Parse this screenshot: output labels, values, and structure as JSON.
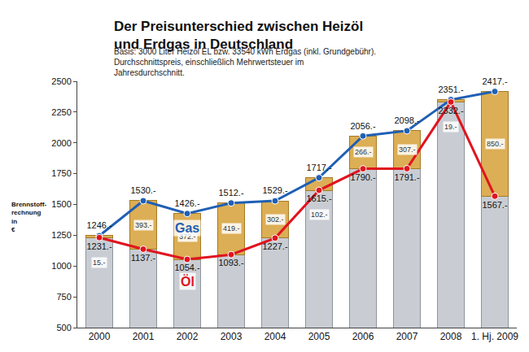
{
  "chart_data": {
    "type": "line",
    "title": "Der Preisunterschied zwischen Heizöl und Erdgas in Deutschland",
    "subtitle": "Basis: 3000 Liter Heizöl EL bzw. 33540 kWh Erdgas (inkl. Grundgebühr). Durchschnittspreis, einschließlich Mehrwertsteuer im Jahresdurchschnitt.",
    "y_label": "Brennstoff-rechnung in €",
    "categories": [
      "2000",
      "2001",
      "2002",
      "2003",
      "2004",
      "2005",
      "2006",
      "2007",
      "2008",
      "1. Hj. 2009"
    ],
    "series": [
      {
        "name": "Gas",
        "color": "#1f5fb4",
        "marker": "circle",
        "values": [
          1246,
          1530,
          1426,
          1512,
          1529,
          1717,
          2056,
          2098,
          2351,
          2417
        ],
        "value_labels": [
          "1246.-",
          "1530.-",
          "1426.-",
          "1512.-",
          "1529.-",
          "1717.-",
          "2056.-",
          "2098.-",
          "2351.-",
          "2417.-"
        ]
      },
      {
        "name": "Öl",
        "color": "#e0141e",
        "marker": "circle",
        "values": [
          1231,
          1137,
          1054,
          1093,
          1227,
          1615,
          1790,
          1791,
          2332,
          1567
        ],
        "value_labels": [
          "1231.-",
          "1137.-",
          "1054.-",
          "1093.-",
          "1227.-",
          "1615.-",
          "1790.-",
          "1791.-",
          "2332.-",
          "1567.-"
        ]
      }
    ],
    "difference": {
      "values": [
        15,
        393,
        372,
        419,
        302,
        102,
        266,
        307,
        19,
        850
      ],
      "value_labels": [
        "15.-",
        "393.-",
        "372.-",
        "419.-",
        "302.-",
        "102.-",
        "266.-",
        "307.-",
        "19.-",
        "850.-"
      ]
    },
    "ylim": [
      500,
      2500
    ],
    "yticks": [
      500,
      750,
      1000,
      1250,
      1500,
      1750,
      2000,
      2250,
      2500
    ],
    "grid": false,
    "data_labels": true
  }
}
